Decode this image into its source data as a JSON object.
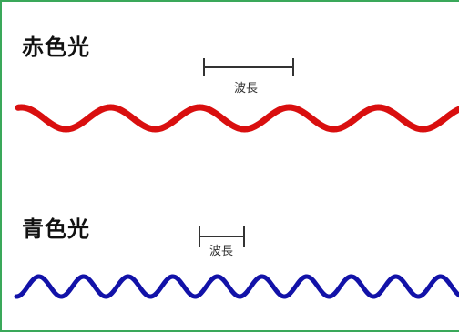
{
  "red": {
    "label": "赤色光",
    "color": "#d90f0f",
    "wavelength_label": "波長"
  },
  "blue": {
    "label": "青色光",
    "color": "#1212a8",
    "wavelength_label": "波長"
  },
  "frame_color": "#3aa85a"
}
